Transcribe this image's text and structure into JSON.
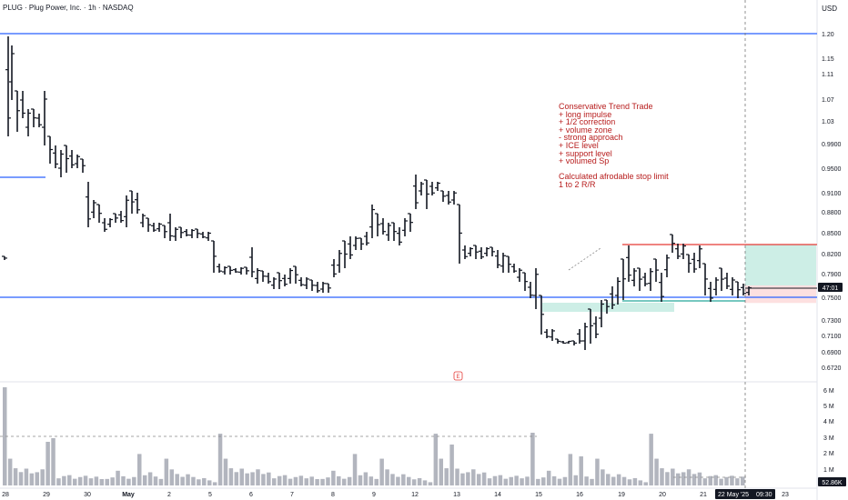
{
  "header": {
    "title": "PLUG · Plug Power, Inc. · 1h · NASDAQ",
    "currency": "USD"
  },
  "annotation": {
    "lines": [
      "Conservative Trend Trade",
      "+ long impulse",
      "+ 1/2 correction",
      "+ volume zone",
      "- strong approach",
      "+ ICE level",
      "+ support level",
      "+ volumed Sp",
      "",
      "Calculated afrodable stop limit",
      "1 to 2 R/R"
    ]
  },
  "price_tag": "47:01",
  "volume_tag": "52.86K",
  "date_tag": "22 May '25",
  "time_tag": "09:30",
  "earnings_marker": "E",
  "colors": {
    "bar": "#131722",
    "blue_line": "#2962ff",
    "red_line": "#e53935",
    "green_zone": "#cdeee6",
    "red_zone": "#fde0e0",
    "volume": "#b2b5be",
    "teal_line": "#26a69a",
    "grid_sep": "#e0e3eb"
  },
  "chart_data": {
    "type": "bar",
    "title": "PLUG · Plug Power, Inc. · 1h · NASDAQ",
    "currency": "USD",
    "price_axis_ticks": [
      "1.20",
      "1.15",
      "1.11",
      "1.07",
      "1.03",
      "0.9900",
      "0.9500",
      "0.9100",
      "0.8800",
      "0.8500",
      "0.8200",
      "0.7900",
      "0.7500",
      "0.7300",
      "0.7100",
      "0.6900",
      "0.6720"
    ],
    "price_axis_values": [
      1.2,
      1.15,
      1.11,
      1.07,
      1.03,
      0.99,
      0.95,
      0.91,
      0.88,
      0.85,
      0.82,
      0.79,
      0.75,
      0.73,
      0.71,
      0.69,
      0.672
    ],
    "volume_axis_ticks": [
      "6 M",
      "5 M",
      "4 M",
      "3 M",
      "2 M",
      "1 M"
    ],
    "x_axis_ticks": [
      "28",
      "29",
      "30",
      "May",
      "2",
      "5",
      "6",
      "7",
      "8",
      "9",
      "12",
      "13",
      "14",
      "15",
      "16",
      "19",
      "20",
      "21",
      "23"
    ],
    "ohlc_close_approx": [
      0.82,
      1.05,
      1.0,
      1.02,
      0.98,
      0.97,
      0.96,
      0.93,
      0.91,
      0.88,
      0.87,
      0.86,
      0.85,
      0.84,
      0.83,
      0.8,
      0.79,
      0.78,
      0.79,
      0.77,
      0.82,
      0.86,
      0.9,
      0.88,
      0.86,
      0.81,
      0.81,
      0.8,
      0.78,
      0.76,
      0.72,
      0.71,
      0.74,
      0.78,
      0.8,
      0.79,
      0.82,
      0.78,
      0.77,
      0.78
    ],
    "levels": {
      "blue_top": 1.2,
      "blue_mid": 0.945,
      "blue_support": 0.764,
      "red_target": 0.833,
      "entry": 0.77,
      "stop": 0.757
    },
    "volume_millions_approx": [
      5.8,
      2.0,
      1.5,
      1.4,
      1.2,
      1.0,
      1.3,
      1.1,
      0.9,
      1.2,
      0.8,
      0.7,
      0.9,
      0.7,
      0.6,
      0.8,
      0.7,
      0.6,
      0.5,
      0.6,
      0.9,
      1.1,
      0.8,
      0.7,
      0.6,
      2.6,
      1.0,
      0.9,
      0.7,
      0.6,
      3.0,
      1.2,
      1.0,
      0.9,
      0.8,
      0.7,
      0.6,
      0.5,
      0.4,
      0.3
    ]
  }
}
